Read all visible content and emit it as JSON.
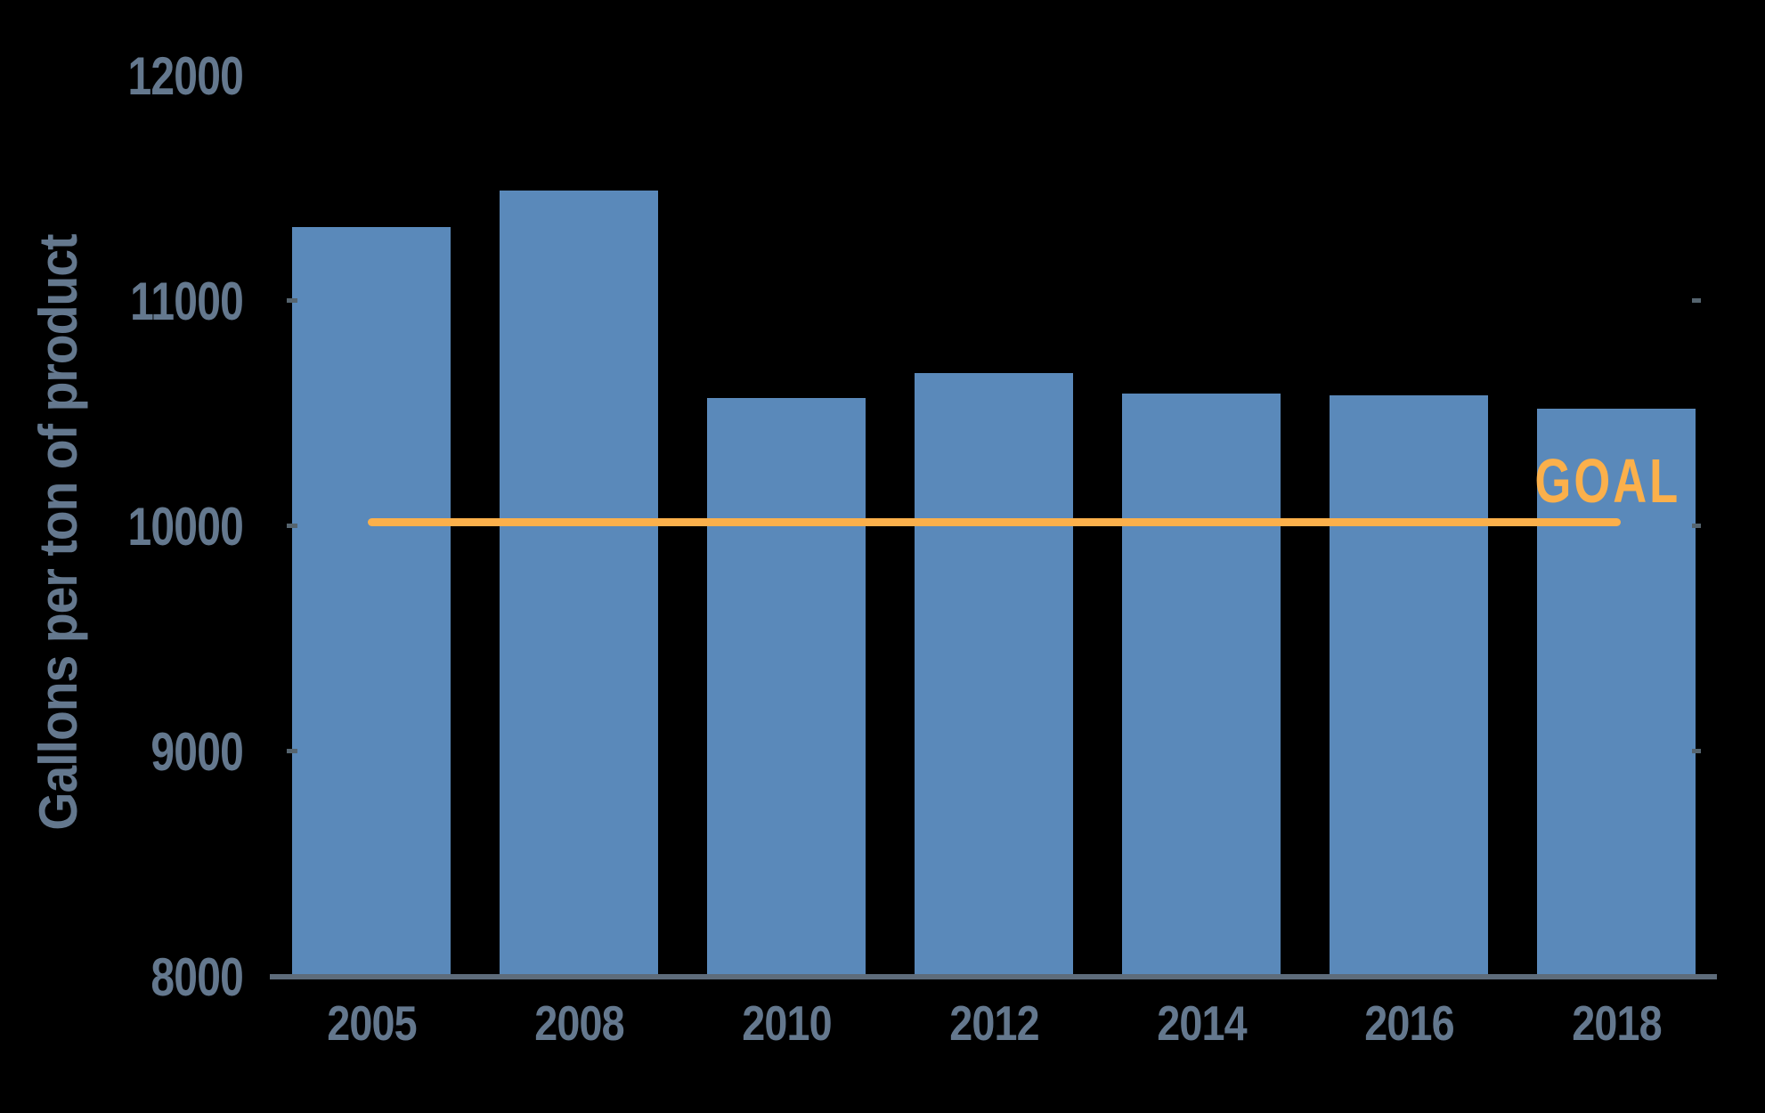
{
  "chart_data": {
    "type": "bar",
    "title": "",
    "xlabel": "",
    "ylabel": "Gallons per ton of product",
    "categories": [
      "2005",
      "2008",
      "2010",
      "2012",
      "2014",
      "2016",
      "2018"
    ],
    "values": [
      11330,
      11490,
      10570,
      10680,
      10590,
      10580,
      10520
    ],
    "series": [
      {
        "name": "Gallons per ton of product",
        "values": [
          11330,
          11490,
          10570,
          10680,
          10590,
          10580,
          10520
        ]
      }
    ],
    "yticks": [
      8000,
      9000,
      10000,
      11000,
      12000
    ],
    "ylim": [
      8000,
      12150
    ],
    "grid": false,
    "legend_position": "none",
    "goal": {
      "label": "GOAL",
      "value": 10000
    },
    "colors": {
      "background": "#000000",
      "bar": "#5A89BA",
      "axis_text": "#64788E",
      "axis_line": "#5E6C7B",
      "goal": "#FBB04B"
    }
  }
}
